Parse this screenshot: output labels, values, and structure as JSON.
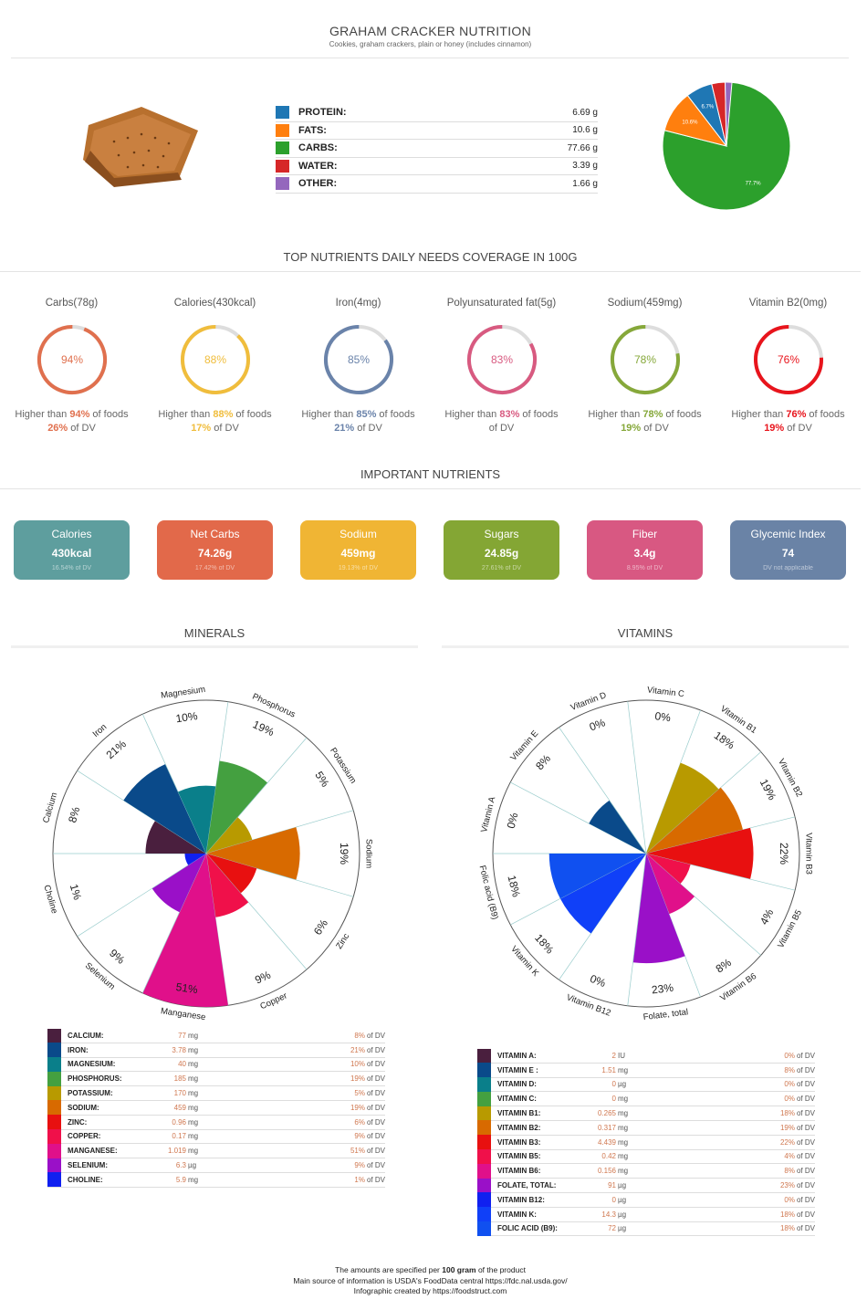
{
  "header": {
    "title": "GRAHAM CRACKER NUTRITION",
    "subtitle": "Cookies, graham crackers, plain or honey (includes cinnamon)"
  },
  "macros": [
    {
      "name": "PROTEIN:",
      "value": "6.69 g",
      "pct": 6.7,
      "label": "6.7%",
      "color": "#1f77b4"
    },
    {
      "name": "FATS:",
      "value": "10.6 g",
      "pct": 10.6,
      "label": "10.6%",
      "color": "#ff7f0e"
    },
    {
      "name": "CARBS:",
      "value": "77.66 g",
      "pct": 77.7,
      "label": "77.7%",
      "color": "#2ca02c"
    },
    {
      "name": "WATER:",
      "value": "3.39 g",
      "pct": 3.4,
      "label": "",
      "color": "#d62728"
    },
    {
      "name": "OTHER:",
      "value": "1.66 g",
      "pct": 1.7,
      "label": "",
      "color": "#9467bd"
    }
  ],
  "coverage": {
    "title": "TOP NUTRIENTS DAILY NEEDS COVERAGE IN 100G",
    "items": [
      {
        "label": "Carbs(78g)",
        "pct": 94,
        "pct_label": "94%",
        "higher": "94%",
        "dv": "26%",
        "color": "#e0704e"
      },
      {
        "label": "Calories(430kcal)",
        "pct": 88,
        "pct_label": "88%",
        "higher": "88%",
        "dv": "17%",
        "color": "#f0bd3c"
      },
      {
        "label": "Iron(4mg)",
        "pct": 85,
        "pct_label": "85%",
        "higher": "85%",
        "dv": "21%",
        "color": "#6a83aa"
      },
      {
        "label": "Polyunsaturated fat(5g)",
        "pct": 83,
        "pct_label": "83%",
        "higher": "83%",
        "dv": "",
        "color": "#d85a80"
      },
      {
        "label": "Sodium(459mg)",
        "pct": 78,
        "pct_label": "78%",
        "higher": "78%",
        "dv": "19%",
        "color": "#86a83a"
      },
      {
        "label": "Vitamin B2(0mg)",
        "pct": 76,
        "pct_label": "76%",
        "higher": "76%",
        "dv": "19%",
        "color": "#e8141c"
      }
    ],
    "higher_prefix": "Higher than ",
    "higher_suffix": " of foods",
    "dv_suffix": " of DV"
  },
  "important": {
    "title": "IMPORTANT NUTRIENTS",
    "cards": [
      {
        "label": "Calories",
        "value": "430kcal",
        "sub": "16.54% of DV",
        "color": "#5e9e9e"
      },
      {
        "label": "Net Carbs",
        "value": "74.26g",
        "sub": "17.42% of DV",
        "color": "#e2694a"
      },
      {
        "label": "Sodium",
        "value": "459mg",
        "sub": "19.13% of DV",
        "color": "#f0b534"
      },
      {
        "label": "Sugars",
        "value": "24.85g",
        "sub": "27.61% of DV",
        "color": "#84a634"
      },
      {
        "label": "Fiber",
        "value": "3.4g",
        "sub": "8.95% of DV",
        "color": "#d85882"
      },
      {
        "label": "Glycemic Index",
        "value": "74",
        "sub": "DV not applicable",
        "color": "#6a83a6"
      }
    ]
  },
  "minerals": {
    "title": "MINERALS",
    "items": [
      {
        "name": "Calcium",
        "table_name": "CALCIUM:",
        "amount": "77",
        "unit": "mg",
        "dv": 8,
        "dv_label": "8%",
        "color": "#4a1f3e"
      },
      {
        "name": "Iron",
        "table_name": "IRON:",
        "amount": "3.78",
        "unit": "mg",
        "dv": 21,
        "dv_label": "21%",
        "color": "#0a4a8a"
      },
      {
        "name": "Magnesium",
        "table_name": "MAGNESIUM:",
        "amount": "40",
        "unit": "mg",
        "dv": 10,
        "dv_label": "10%",
        "color": "#0a7f8a"
      },
      {
        "name": "Phosphorus",
        "table_name": "PHOSPHORUS:",
        "amount": "185",
        "unit": "mg",
        "dv": 19,
        "dv_label": "19%",
        "color": "#44a040"
      },
      {
        "name": "Potassium",
        "table_name": "POTASSIUM:",
        "amount": "170",
        "unit": "mg",
        "dv": 5,
        "dv_label": "5%",
        "color": "#b89a00"
      },
      {
        "name": "Sodium",
        "table_name": "SODIUM:",
        "amount": "459",
        "unit": "mg",
        "dv": 19,
        "dv_label": "19%",
        "color": "#d86a00"
      },
      {
        "name": "Zinc",
        "table_name": "ZINC:",
        "amount": "0.96",
        "unit": "mg",
        "dv": 6,
        "dv_label": "6%",
        "color": "#e81010"
      },
      {
        "name": "Copper",
        "table_name": "COPPER:",
        "amount": "0.17",
        "unit": "mg",
        "dv": 9,
        "dv_label": "9%",
        "color": "#f0104a"
      },
      {
        "name": "Manganese",
        "table_name": "MANGANESE:",
        "amount": "1.019",
        "unit": "mg",
        "dv": 51,
        "dv_label": "51%",
        "color": "#e0108a"
      },
      {
        "name": "Selenium",
        "table_name": "SELENIUM:",
        "amount": "6.3",
        "unit": "µg",
        "dv": 9,
        "dv_label": "9%",
        "color": "#9a10c8"
      },
      {
        "name": "Choline",
        "table_name": "CHOLINE:",
        "amount": "5.9",
        "unit": "mg",
        "dv": 1,
        "dv_label": "1%",
        "color": "#1020f0"
      }
    ]
  },
  "vitamins": {
    "title": "VITAMINS",
    "items": [
      {
        "name": "Vitamin A",
        "table_name": "VITAMIN A:",
        "amount": "2",
        "unit": "IU",
        "dv": 0,
        "dv_label": "0%",
        "color": "#4a1f3e"
      },
      {
        "name": "Vitamin E",
        "table_name": "VITAMIN E :",
        "amount": "1.51",
        "unit": "mg",
        "dv": 8,
        "dv_label": "8%",
        "color": "#0a4a8a"
      },
      {
        "name": "Vitamin D",
        "table_name": "VITAMIN D:",
        "amount": "0",
        "unit": "µg",
        "dv": 0,
        "dv_label": "0%",
        "color": "#0a7f8a"
      },
      {
        "name": "Vitamin C",
        "table_name": "VITAMIN C:",
        "amount": "0",
        "unit": "mg",
        "dv": 0,
        "dv_label": "0%",
        "color": "#44a040"
      },
      {
        "name": "Vitamin B1",
        "table_name": "VITAMIN B1:",
        "amount": "0.265",
        "unit": "mg",
        "dv": 18,
        "dv_label": "18%",
        "color": "#b89a00"
      },
      {
        "name": "Vitamin B2",
        "table_name": "VITAMIN B2:",
        "amount": "0.317",
        "unit": "mg",
        "dv": 19,
        "dv_label": "19%",
        "color": "#d86a00"
      },
      {
        "name": "Vitamin B3",
        "table_name": "VITAMIN B3:",
        "amount": "4.439",
        "unit": "mg",
        "dv": 22,
        "dv_label": "22%",
        "color": "#e81010"
      },
      {
        "name": "Vitamin B5",
        "table_name": "VITAMIN B5:",
        "amount": "0.42",
        "unit": "mg",
        "dv": 4,
        "dv_label": "4%",
        "color": "#f0104a"
      },
      {
        "name": "Vitamin B6",
        "table_name": "VITAMIN B6:",
        "amount": "0.156",
        "unit": "mg",
        "dv": 8,
        "dv_label": "8%",
        "color": "#e0108a"
      },
      {
        "name": "Folate, total",
        "table_name": "FOLATE, TOTAL:",
        "amount": "91",
        "unit": "µg",
        "dv": 23,
        "dv_label": "23%",
        "color": "#9a10c8"
      },
      {
        "name": "Vitamin B12",
        "table_name": "VITAMIN B12:",
        "amount": "0",
        "unit": "µg",
        "dv": 0,
        "dv_label": "0%",
        "color": "#1020f0"
      },
      {
        "name": "Vitamin K",
        "table_name": "VITAMIN K:",
        "amount": "14.3",
        "unit": "µg",
        "dv": 18,
        "dv_label": "18%",
        "color": "#1040f8"
      },
      {
        "name": "Folic acid (B9)",
        "table_name": "FOLIC ACID (B9):",
        "amount": "72",
        "unit": "µg",
        "dv": 18,
        "dv_label": "18%",
        "color": "#1050f0"
      }
    ]
  },
  "of_dv": "of DV",
  "footer": {
    "line1_a": "The amounts are specified per ",
    "line1_b": "100 gram",
    "line1_c": " of the product",
    "line2": "Main source of information is USDA's FoodData central https://fdc.nal.usda.gov/",
    "line3": "Infographic created by https://foodstruct.com"
  }
}
